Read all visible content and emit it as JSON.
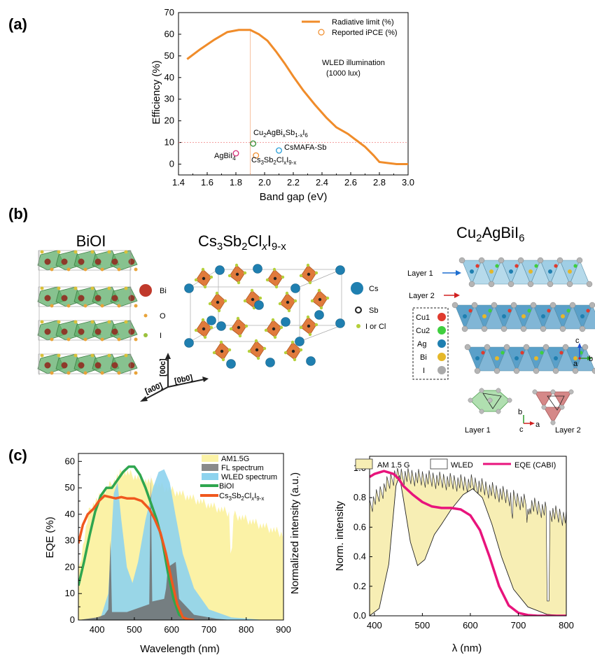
{
  "panel_a": {
    "label": "(a)",
    "annotation_line1": "WLED illumination",
    "annotation_line2": "(1000 lux)",
    "chart_data": {
      "type": "line",
      "xlabel": "Band gap (eV)",
      "ylabel": "Efficiency (%)",
      "xlim": [
        1.4,
        3.0
      ],
      "ylim": [
        -5,
        70
      ],
      "xticks": [
        "1.4",
        "1.6",
        "1.8",
        "2.0",
        "2.2",
        "2.4",
        "2.6",
        "2.8",
        "3.0"
      ],
      "yticks": [
        "0",
        "10",
        "20",
        "30",
        "40",
        "50",
        "60",
        "70"
      ],
      "legend_position": "top-right",
      "series": [
        {
          "name": "Radiative limit (%)",
          "color": "#f08c2a",
          "x": [
            1.46,
            1.55,
            1.65,
            1.74,
            1.82,
            1.9,
            1.96,
            2.02,
            2.08,
            2.14,
            2.2,
            2.27,
            2.35,
            2.43,
            2.5,
            2.58,
            2.64,
            2.7,
            2.76,
            2.8,
            2.86,
            2.92,
            3.0
          ],
          "y": [
            48.5,
            53,
            57.5,
            61,
            62,
            62,
            60,
            57,
            52,
            46.5,
            40.5,
            34,
            27.5,
            21.5,
            17,
            14,
            11,
            8,
            4,
            1,
            0.5,
            0,
            0
          ]
        },
        {
          "name": "Reported iPCE (%)",
          "color": "#f08c2a",
          "marker": "open-circle",
          "points": [
            {
              "label": "AgBiI",
              "sub": "4",
              "x": 1.8,
              "y": 5,
              "color": "#d6307a"
            },
            {
              "label": "Cu",
              "sub": "2",
              "tail": "AgBi",
              "tailsub": "x",
              "tail2": "Sb",
              "tail2sub": "1-x",
              "tail3": "I",
              "tail3sub": "6",
              "x": 1.92,
              "y": 9.5,
              "color": "#2e8b2e"
            },
            {
              "label": "Cs",
              "sub": "3",
              "tail": "Sb",
              "tailsub": "2",
              "tail2": "Cl",
              "tail2sub": "x",
              "tail3": "I",
              "tail3sub": "9-x",
              "x": 1.94,
              "y": 4,
              "color": "#f08c2a"
            },
            {
              "label": "CsMAFA-Sb",
              "x": 2.1,
              "y": 6.3,
              "color": "#2a9fd8"
            }
          ]
        }
      ],
      "reference_lines": {
        "vertical_x": 1.9,
        "horizontal_y": 10
      }
    }
  },
  "panel_b": {
    "label": "(b)",
    "biooi_title": "BiOI",
    "cs_title_main": "Cs",
    "cs_title_sub1": "3",
    "cs_title_mid": "Sb",
    "cs_title_sub2": "2",
    "cs_title_mid2": "Cl",
    "cs_title_sub3": "x",
    "cs_title_mid3": "I",
    "cs_title_sub4": "9-x",
    "cu_title_main": "Cu",
    "cu_title_sub": "2",
    "cu_title_tail": "AgBiI",
    "cu_title_sub2": "6",
    "biooi_legend": [
      {
        "label": "Bi",
        "color": "#c0392b"
      },
      {
        "label": "O",
        "color": "#e8a33a"
      },
      {
        "label": "I",
        "color": "#9bc13c"
      }
    ],
    "cs_legend": [
      {
        "label": "Cs",
        "color": "#1f7fb0"
      },
      {
        "label": "Sb",
        "color": "#222222"
      },
      {
        "label": "I or Cl",
        "color": "#b5cf3a"
      }
    ],
    "axes_labels": {
      "c": "[00c]",
      "a": "[a00]",
      "b": "[0b0]"
    },
    "cu_layer1": "Layer 1",
    "cu_layer2": "Layer 2",
    "cu_legend": [
      {
        "label": "Cu1",
        "color": "#e03b2e"
      },
      {
        "label": "Cu2",
        "color": "#3fcf3f"
      },
      {
        "label": "Ag",
        "color": "#1f7fb0"
      },
      {
        "label": "Bi",
        "color": "#e5b82a"
      },
      {
        "label": "I",
        "color": "#aaaaaa"
      }
    ],
    "cu_axes": {
      "c": "c",
      "a": "a",
      "b": "b"
    },
    "bottom_layer1": "Layer 1",
    "bottom_layer2": "Layer 2",
    "bottom_axes": {
      "b": "b",
      "c": "c",
      "a": "a"
    }
  },
  "panel_c": {
    "label": "(c)",
    "left": {
      "chart_data": {
        "type": "area",
        "xlabel": "Wavelength (nm)",
        "ylabel": "EQE (%)",
        "ylabel_right": "Normalized intensity (a.u.)",
        "xlim": [
          350,
          900
        ],
        "ylim": [
          0,
          63
        ],
        "xticks": [
          "400",
          "500",
          "600",
          "700",
          "800",
          "900"
        ],
        "yticks": [
          "0",
          "5",
          "10",
          "15",
          "20",
          "25",
          "30",
          "35",
          "40",
          "45",
          "50",
          "55",
          "60"
        ],
        "legend_position": "top-right",
        "series": [
          {
            "name": "AM1.5G",
            "color": "#fbf2a6"
          },
          {
            "name": "FL spectrum",
            "color": "#8a8a8a"
          },
          {
            "name": "WLED spectrum",
            "color": "#8ed3ee"
          },
          {
            "name": "BiOI",
            "color": "#2fa64f",
            "x": [
              350,
              365,
              380,
              395,
              410,
              425,
              440,
              455,
              470,
              485,
              500,
              515,
              530,
              545,
              560,
              575,
              590,
              605,
              620,
              635,
              650
            ],
            "y": [
              13,
              22,
              32,
              41,
              47,
              50,
              50,
              53,
              56,
              58,
              58,
              55,
              50,
              44,
              38,
              30,
              18,
              8,
              2,
              0.5,
              0
            ]
          },
          {
            "name": "Cs3Sb2ClxI9-x",
            "color": "#f0581e",
            "name_parts": [
              "Cs",
              "3",
              "Sb",
              "2",
              "Cl",
              "x",
              "I",
              "9-x"
            ],
            "x": [
              350,
              362,
              375,
              390,
              405,
              420,
              435,
              450,
              465,
              480,
              500,
              520,
              540,
              555,
              570,
              585,
              600,
              615,
              630,
              645,
              660
            ],
            "y": [
              29,
              36,
              40,
              42,
              45,
              47,
              46.5,
              46,
              46.5,
              46,
              46,
              45,
              42,
              38,
              33,
              25,
              15,
              6,
              1,
              0.2,
              0
            ]
          }
        ]
      }
    },
    "right": {
      "chart_data": {
        "type": "area",
        "xlabel": "λ (nm)",
        "ylabel": "Norm. intensity",
        "xlim": [
          390,
          800
        ],
        "ylim": [
          0,
          1.08
        ],
        "xticks": [
          "400",
          "500",
          "600",
          "700",
          "800"
        ],
        "yticks": [
          "0.0",
          "0.2",
          "0.4",
          "0.6",
          "0.8",
          "1.0"
        ],
        "legend_position": "top",
        "series": [
          {
            "name": "AM 1.5 G",
            "color": "#f7eeb4"
          },
          {
            "name": "WLED",
            "color": "#ffffff"
          },
          {
            "name": "EQE (CABI)",
            "color": "#e8147c",
            "x": [
              390,
              400,
              410,
              420,
              430,
              440,
              450,
              460,
              480,
              500,
              520,
              540,
              560,
              580,
              600,
              620,
              640,
              660,
              680,
              700,
              720,
              740,
              760,
              780,
              800
            ],
            "y": [
              0.94,
              0.96,
              0.97,
              0.98,
              0.97,
              0.96,
              0.93,
              0.88,
              0.82,
              0.77,
              0.74,
              0.73,
              0.73,
              0.72,
              0.68,
              0.58,
              0.4,
              0.2,
              0.07,
              0.02,
              0.005,
              0,
              0,
              0,
              0
            ]
          }
        ]
      }
    }
  }
}
